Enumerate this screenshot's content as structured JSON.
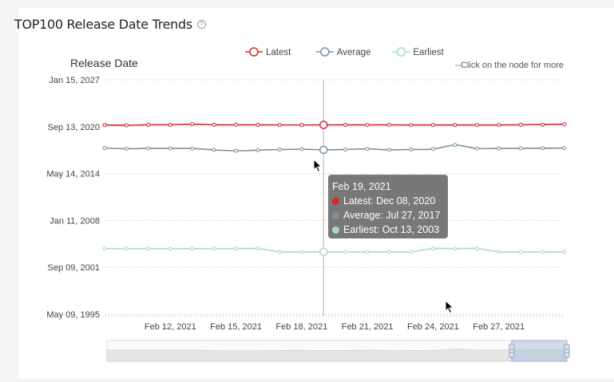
{
  "page": {
    "title": "TOP100 Release Date Trends",
    "help_icon": "question-circle-icon"
  },
  "hint": "--Click on the node for more",
  "chart_data": {
    "type": "line",
    "title": "TOP100 Release Date Trends",
    "ylabel": "Release Date",
    "y_ticks": [
      "Jan 15, 2027",
      "Sep 13, 2020",
      "May 14, 2014",
      "Jan 11, 2008",
      "Sep 09, 2001",
      "May 09, 1995"
    ],
    "x_ticks": [
      "Feb 12, 2021",
      "Feb 15, 2021",
      "Feb 18, 2021",
      "Feb 21, 2021",
      "Feb 24, 2021",
      "Feb 27, 2021"
    ],
    "x_range": [
      "2021-02-09",
      "2021-03-02"
    ],
    "y_range": [
      "1995-05-09",
      "2027-01-15"
    ],
    "legend_position": "top-center",
    "grid": true,
    "x": [
      "2021-02-09",
      "2021-02-10",
      "2021-02-11",
      "2021-02-12",
      "2021-02-13",
      "2021-02-14",
      "2021-02-15",
      "2021-02-16",
      "2021-02-17",
      "2021-02-18",
      "2021-02-19",
      "2021-02-20",
      "2021-02-21",
      "2021-02-22",
      "2021-02-23",
      "2021-02-24",
      "2021-02-25",
      "2021-02-26",
      "2021-02-27",
      "2021-02-28",
      "2021-03-01",
      "2021-03-02"
    ],
    "series": [
      {
        "name": "Latest",
        "color": "#d9262c",
        "values": [
          "2020-12-05",
          "2020-11-20",
          "2020-12-15",
          "2020-12-15",
          "2021-01-10",
          "2020-12-15",
          "2020-12-12",
          "2020-12-10",
          "2020-12-08",
          "2020-12-08",
          "2020-12-08",
          "2020-12-10",
          "2020-12-10",
          "2020-12-10",
          "2020-12-05",
          "2020-12-05",
          "2020-12-05",
          "2020-12-05",
          "2020-12-05",
          "2020-12-15",
          "2020-12-25",
          "2021-01-10"
        ]
      },
      {
        "name": "Average",
        "color": "#7a8fa0",
        "values": [
          "2017-10-20",
          "2017-09-20",
          "2017-10-05",
          "2017-10-05",
          "2017-09-30",
          "2017-07-20",
          "2017-06-10",
          "2017-07-10",
          "2017-08-10",
          "2017-08-25",
          "2017-07-27",
          "2017-08-10",
          "2017-09-10",
          "2017-07-25",
          "2017-08-15",
          "2017-09-01",
          "2018-03-20",
          "2017-10-05",
          "2017-10-05",
          "2017-10-05",
          "2017-10-15",
          "2017-10-20"
        ]
      },
      {
        "name": "Earliest",
        "color": "#a9d4d6",
        "values": [
          "2004-03-20",
          "2004-03-20",
          "2004-03-20",
          "2004-03-20",
          "2004-03-20",
          "2004-03-20",
          "2004-03-20",
          "2004-03-20",
          "2003-10-13",
          "2003-10-13",
          "2003-10-13",
          "2003-10-13",
          "2003-10-13",
          "2003-10-13",
          "2003-10-13",
          "2004-03-20",
          "2004-03-20",
          "2004-03-20",
          "2003-10-13",
          "2003-10-13",
          "2003-10-13",
          "2003-10-13"
        ]
      }
    ],
    "highlight_index": 10
  },
  "tooltip": {
    "date": "Feb 19, 2021",
    "rows": [
      {
        "label": "Latest: Dec 08, 2020",
        "color": "#d9262c"
      },
      {
        "label": "Average: Jul 27, 2017",
        "color": "#7a8fa0"
      },
      {
        "label": "Earliest: Oct 13, 2003",
        "color": "#a9d4d6"
      }
    ]
  },
  "datazoom": {
    "start": 0.88,
    "end": 1.0
  }
}
